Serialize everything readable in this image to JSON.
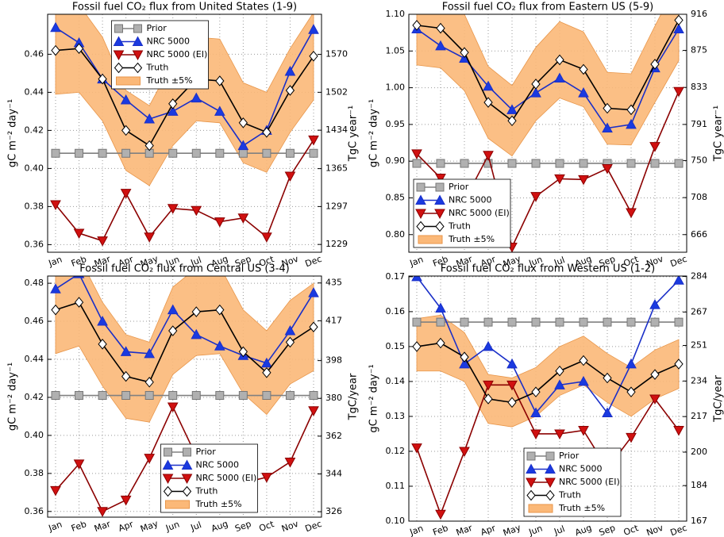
{
  "chart_data": [
    {
      "type": "line",
      "title": "Fossil fuel CO₂ flux from United States (1-9)",
      "ylabel": "gC m⁻² day⁻¹",
      "y2label": "TgC year⁻¹",
      "categories": [
        "Jan",
        "Feb",
        "Mar",
        "Apr",
        "May",
        "Jun",
        "Jul",
        "Aug",
        "Sep",
        "Oct",
        "Nov",
        "Dec"
      ],
      "ylim": [
        0.356,
        0.481
      ],
      "yticks": [
        0.36,
        0.38,
        {
          "value": 0.4,
          "label": "0.40"
        },
        0.42,
        0.44,
        0.46
      ],
      "y2lim": [
        1215,
        1642
      ],
      "y2ticks": [
        1229,
        1297,
        1365,
        1434,
        1502,
        1570
      ],
      "grid": true,
      "legend_loc": "upper center",
      "series": [
        {
          "name": "Prior",
          "color": "#808080",
          "marker": "s",
          "values": [
            0.408,
            0.408,
            0.408,
            0.408,
            0.408,
            0.408,
            0.408,
            0.408,
            0.408,
            0.408,
            0.408,
            0.408
          ]
        },
        {
          "name": "NRC 5000",
          "color": "#1a2fc8",
          "marker": "^",
          "values": [
            0.474,
            0.466,
            0.447,
            0.436,
            0.426,
            0.43,
            0.437,
            0.43,
            0.412,
            0.42,
            0.451,
            0.473
          ]
        },
        {
          "name": "NRC 5000 (EI)",
          "color": "#8b0000",
          "marker": "v",
          "values": [
            0.381,
            0.366,
            0.362,
            0.387,
            0.364,
            0.379,
            0.378,
            0.372,
            0.374,
            0.364,
            0.396,
            0.415
          ]
        },
        {
          "name": "Truth",
          "color": "#000000",
          "marker": "D",
          "values": [
            0.462,
            0.463,
            0.447,
            0.42,
            0.412,
            0.434,
            0.447,
            0.446,
            0.424,
            0.419,
            0.441,
            0.459
          ]
        },
        {
          "name": "Truth ±5%",
          "color": "#fbb878",
          "marker": "band",
          "lower": [
            0.439,
            0.44,
            0.425,
            0.399,
            0.391,
            0.412,
            0.425,
            0.424,
            0.403,
            0.398,
            0.419,
            0.436
          ],
          "upper": [
            0.485,
            0.486,
            0.469,
            0.441,
            0.433,
            0.456,
            0.469,
            0.468,
            0.445,
            0.44,
            0.463,
            0.482
          ]
        }
      ]
    },
    {
      "type": "line",
      "title": "Fossil fuel CO₂ flux from Eastern US (5-9)",
      "ylabel": "gC m⁻² day⁻¹",
      "y2label": "TgC year⁻¹",
      "categories": [
        "Jan",
        "Feb",
        "Mar",
        "Apr",
        "May",
        "Jun",
        "Jul",
        "Aug",
        "Sep",
        "Oct",
        "Nov",
        "Dec"
      ],
      "ylim": [
        0.776,
        1.1
      ],
      "yticks": [
        {
          "value": 0.8,
          "label": "0.80"
        },
        0.85,
        {
          "value": 0.9,
          "label": "0.90"
        },
        0.95,
        {
          "value": 1.0,
          "label": "1.00"
        },
        1.05,
        {
          "value": 1.1,
          "label": "1.10"
        }
      ],
      "y2lim": [
        646,
        916
      ],
      "y2ticks": [
        666,
        708,
        750,
        791,
        833,
        875,
        916
      ],
      "grid": true,
      "legend_loc": "lower left",
      "series": [
        {
          "name": "Prior",
          "color": "#808080",
          "marker": "s",
          "values": [
            0.897,
            0.897,
            0.897,
            0.897,
            0.897,
            0.897,
            0.897,
            0.897,
            0.897,
            0.897,
            0.897,
            0.897
          ]
        },
        {
          "name": "NRC 5000",
          "color": "#1a2fc8",
          "marker": "^",
          "values": [
            1.08,
            1.057,
            1.04,
            1.002,
            0.97,
            0.993,
            1.013,
            0.993,
            0.945,
            0.95,
            1.027,
            1.08
          ]
        },
        {
          "name": "NRC 5000 (EI)",
          "color": "#8b0000",
          "marker": "v",
          "values": [
            0.91,
            0.877,
            0.846,
            0.908,
            0.783,
            0.852,
            0.876,
            0.875,
            0.89,
            0.83,
            0.92,
            0.995
          ]
        },
        {
          "name": "Truth",
          "color": "#000000",
          "marker": "D",
          "values": [
            1.085,
            1.081,
            1.048,
            0.98,
            0.955,
            1.005,
            1.038,
            1.025,
            0.972,
            0.97,
            1.032,
            1.092
          ]
        },
        {
          "name": "Truth ±5%",
          "color": "#fbb878",
          "marker": "band",
          "lower": [
            1.031,
            1.027,
            0.996,
            0.931,
            0.907,
            0.955,
            0.986,
            0.974,
            0.923,
            0.922,
            0.98,
            1.037
          ],
          "upper": [
            1.139,
            1.135,
            1.1,
            1.029,
            1.003,
            1.055,
            1.09,
            1.076,
            1.021,
            1.019,
            1.084,
            1.147
          ]
        }
      ]
    },
    {
      "type": "line",
      "title": "Fossil fuel CO₂ flux from Central US (3-4)",
      "ylabel": "gC m⁻² day⁻¹",
      "y2label": "TgC/year",
      "categories": [
        "Jan",
        "Feb",
        "Mar",
        "Apr",
        "May",
        "Jun",
        "Jul",
        "Aug",
        "Sep",
        "Oct",
        "Nov",
        "Dec"
      ],
      "ylim": [
        0.357,
        0.4838
      ],
      "yticks": [
        0.36,
        0.38,
        {
          "value": 0.4,
          "label": "0.40"
        },
        0.42,
        0.44,
        0.46,
        0.48
      ],
      "y2lim": [
        323.4,
        438.3
      ],
      "y2ticks": [
        326,
        344,
        362,
        380,
        398,
        417,
        435
      ],
      "grid": true,
      "legend_loc": "lower center",
      "series": [
        {
          "name": "Prior",
          "color": "#808080",
          "marker": "s",
          "values": [
            0.421,
            0.421,
            0.421,
            0.421,
            0.421,
            0.421,
            0.421,
            0.421,
            0.421,
            0.421,
            0.421,
            0.421
          ]
        },
        {
          "name": "NRC 5000",
          "color": "#1a2fc8",
          "marker": "^",
          "values": [
            0.477,
            0.485,
            0.46,
            0.444,
            0.443,
            0.466,
            0.453,
            0.447,
            0.442,
            0.438,
            0.455,
            0.475
          ]
        },
        {
          "name": "NRC 5000 (EI)",
          "color": "#8b0000",
          "marker": "v",
          "values": [
            0.371,
            0.385,
            0.36,
            0.366,
            0.388,
            0.415,
            0.389,
            0.367,
            0.375,
            0.378,
            0.386,
            0.413
          ]
        },
        {
          "name": "Truth",
          "color": "#000000",
          "marker": "D",
          "values": [
            0.466,
            0.47,
            0.448,
            0.431,
            0.428,
            0.455,
            0.465,
            0.466,
            0.444,
            0.433,
            0.449,
            0.457
          ]
        },
        {
          "name": "Truth ±5%",
          "color": "#fbb878",
          "marker": "band",
          "lower": [
            0.443,
            0.447,
            0.426,
            0.409,
            0.407,
            0.432,
            0.442,
            0.443,
            0.422,
            0.411,
            0.427,
            0.434
          ],
          "upper": [
            0.489,
            0.494,
            0.47,
            0.453,
            0.449,
            0.478,
            0.488,
            0.489,
            0.466,
            0.455,
            0.471,
            0.48
          ]
        }
      ]
    },
    {
      "type": "line",
      "title": "Fossil fuel CO₂ flux from Western US (1-2)",
      "ylabel": "gC m⁻² day⁻¹",
      "y2label": "TgC/year",
      "categories": [
        "Jan",
        "Feb",
        "Mar",
        "Apr",
        "May",
        "Jun",
        "Jul",
        "Aug",
        "Sep",
        "Oct",
        "Nov",
        "Dec"
      ],
      "ylim": [
        0.1,
        0.1702
      ],
      "yticks": [
        {
          "value": 0.1,
          "label": "0.10"
        },
        0.11,
        0.12,
        0.13,
        0.14,
        0.15,
        0.16,
        0.17
      ],
      "y2lim": [
        167,
        284.2
      ],
      "y2ticks": [
        167,
        184,
        200,
        217,
        234,
        251,
        267,
        284
      ],
      "grid": true,
      "legend_loc": "lower center",
      "series": [
        {
          "name": "Prior",
          "color": "#808080",
          "marker": "s",
          "values": [
            0.157,
            0.157,
            0.157,
            0.157,
            0.157,
            0.157,
            0.157,
            0.157,
            0.157,
            0.157,
            0.157,
            0.157
          ]
        },
        {
          "name": "NRC 5000",
          "color": "#1a2fc8",
          "marker": "^",
          "values": [
            0.17,
            0.161,
            0.145,
            0.15,
            0.145,
            0.131,
            0.139,
            0.14,
            0.131,
            0.145,
            0.162,
            0.169
          ]
        },
        {
          "name": "NRC 5000 (EI)",
          "color": "#8b0000",
          "marker": "v",
          "values": [
            0.121,
            0.102,
            0.12,
            0.139,
            0.139,
            0.125,
            0.125,
            0.126,
            0.115,
            0.124,
            0.135,
            0.126
          ]
        },
        {
          "name": "Truth",
          "color": "#000000",
          "marker": "D",
          "values": [
            0.15,
            0.151,
            0.147,
            0.135,
            0.134,
            0.137,
            0.143,
            0.146,
            0.141,
            0.137,
            0.142,
            0.145
          ]
        },
        {
          "name": "Truth ±5%",
          "color": "#fbb878",
          "marker": "band",
          "lower": [
            0.143,
            0.143,
            0.14,
            0.128,
            0.127,
            0.13,
            0.136,
            0.139,
            0.134,
            0.13,
            0.135,
            0.138
          ],
          "upper": [
            0.158,
            0.159,
            0.154,
            0.142,
            0.141,
            0.144,
            0.15,
            0.153,
            0.148,
            0.144,
            0.149,
            0.152
          ]
        }
      ]
    }
  ]
}
